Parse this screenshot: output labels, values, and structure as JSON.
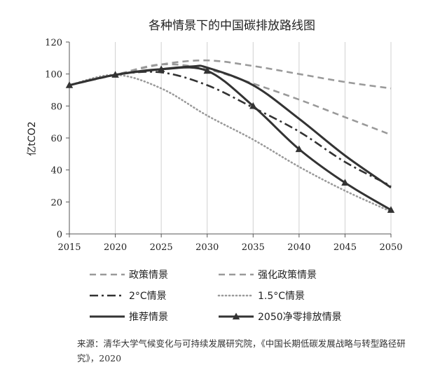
{
  "chart_data": {
    "type": "line",
    "title": "各种情景下的中国碳排放路线图",
    "xlabel": "",
    "ylabel": "亿tCO2",
    "x": [
      2015,
      2020,
      2025,
      2030,
      2035,
      2040,
      2045,
      2050
    ],
    "xlim": [
      2015,
      2050
    ],
    "ylim": [
      0,
      120
    ],
    "yticks": [
      0,
      20,
      40,
      60,
      80,
      100,
      120
    ],
    "grid": "vertical",
    "legend": "bottom",
    "series": [
      {
        "name": "政策情景",
        "style": "dashed",
        "color": "#9a9a9a",
        "points": [
          [
            2015,
            93
          ],
          [
            2020,
            99.5
          ],
          [
            2025,
            106
          ],
          [
            2030,
            108.5
          ],
          [
            2035,
            105
          ],
          [
            2040,
            100
          ],
          [
            2045,
            95
          ],
          [
            2050,
            91
          ]
        ]
      },
      {
        "name": "强化政策情景",
        "style": "dashed",
        "color": "#9a9a9a",
        "points": [
          [
            2015,
            93
          ],
          [
            2020,
            99.5
          ],
          [
            2025,
            106
          ],
          [
            2030,
            103
          ],
          [
            2035,
            94
          ],
          [
            2040,
            84
          ],
          [
            2045,
            73
          ],
          [
            2050,
            62
          ]
        ]
      },
      {
        "name": "2°C情景",
        "style": "dashdot",
        "color": "#333333",
        "points": [
          [
            2015,
            93
          ],
          [
            2020,
            99.5
          ],
          [
            2025,
            101
          ],
          [
            2030,
            93
          ],
          [
            2035,
            79
          ],
          [
            2040,
            64
          ],
          [
            2045,
            45
          ],
          [
            2050,
            30
          ]
        ]
      },
      {
        "name": "1.5°C情景",
        "style": "dotted",
        "color": "#9a9a9a",
        "points": [
          [
            2015,
            93
          ],
          [
            2020,
            99.5
          ],
          [
            2025,
            91
          ],
          [
            2030,
            74
          ],
          [
            2035,
            59
          ],
          [
            2040,
            42
          ],
          [
            2045,
            27
          ],
          [
            2050,
            14
          ]
        ]
      },
      {
        "name": "推荐情景",
        "style": "solid",
        "color": "#333333",
        "points": [
          [
            2015,
            93
          ],
          [
            2020,
            99.5
          ],
          [
            2025,
            103
          ],
          [
            2028.5,
            104.8
          ],
          [
            2030,
            104
          ],
          [
            2035,
            93
          ],
          [
            2040,
            72
          ],
          [
            2045,
            49
          ],
          [
            2050,
            29
          ]
        ]
      },
      {
        "name": "2050净零排放情景",
        "style": "solid-triangle",
        "color": "#333333",
        "points": [
          [
            2015,
            93
          ],
          [
            2020,
            99.5
          ],
          [
            2025,
            103
          ],
          [
            2030,
            102
          ],
          [
            2035,
            80
          ],
          [
            2040,
            53
          ],
          [
            2045,
            32
          ],
          [
            2050,
            15
          ]
        ]
      }
    ]
  },
  "source_text": "来源：清华大学气候变化与可持续发展研究院，《中国长期低碳发展战略与转型路径研究》，2020"
}
